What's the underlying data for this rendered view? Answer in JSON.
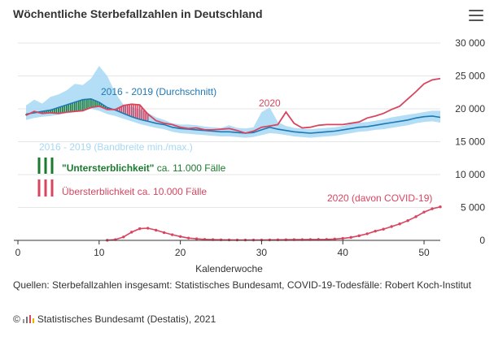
{
  "title": "Wöchentliche Sterbefallzahlen in Deutschland",
  "menu_icon": "hamburger-menu-icon",
  "source": "Quellen: Sterbefallzahlen insgesamt: Statistisches Bundesamt, COVID-19-Todesfälle: Robert Koch-Institut",
  "footer": {
    "copyright": "©",
    "logo_icon": "destatis-logo-icon",
    "text": "Statistisches Bundesamt (Destatis), 2021"
  },
  "colors": {
    "red": "#d9455f",
    "blue": "#1f78b4",
    "band": "#a6d8f5",
    "green": "#1a7a2e",
    "axis_text": "#333333",
    "grid": "#e6e6e6"
  },
  "chart_data": {
    "type": "line",
    "xlabel": "Kalenderwoche",
    "ylabel": "",
    "xlim": [
      0,
      52
    ],
    "ylim": [
      0,
      30000
    ],
    "x_ticks": [
      "0",
      "10",
      "20",
      "30",
      "40",
      "50"
    ],
    "y_ticks": [
      "0",
      "5 000",
      "10 000",
      "15 000",
      "20 000",
      "25 000",
      "30 000"
    ],
    "grid": true,
    "weeks": [
      1,
      2,
      3,
      4,
      5,
      6,
      7,
      8,
      9,
      10,
      11,
      12,
      13,
      14,
      15,
      16,
      17,
      18,
      19,
      20,
      21,
      22,
      23,
      24,
      25,
      26,
      27,
      28,
      29,
      30,
      31,
      32,
      33,
      34,
      35,
      36,
      37,
      38,
      39,
      40,
      41,
      42,
      43,
      44,
      45,
      46,
      47,
      48,
      49,
      50,
      51,
      52
    ],
    "series": [
      {
        "name": "2016 - 2019 (Durchschnitt)",
        "color": "#1f78b4",
        "values": [
          19200,
          19400,
          19600,
          19800,
          20200,
          20600,
          21000,
          21400,
          21500,
          21000,
          20200,
          19800,
          19300,
          18800,
          18400,
          18100,
          17800,
          17600,
          17200,
          17000,
          16900,
          16800,
          16700,
          16600,
          16500,
          16500,
          16400,
          16300,
          16400,
          16800,
          17200,
          16900,
          16700,
          16500,
          16400,
          16300,
          16400,
          16500,
          16600,
          16800,
          17000,
          17200,
          17300,
          17500,
          17700,
          17900,
          18100,
          18300,
          18600,
          18800,
          18900,
          18700
        ]
      },
      {
        "name": "2020",
        "color": "#d9455f",
        "values": [
          19000,
          19600,
          19300,
          19400,
          19300,
          19500,
          19600,
          19700,
          20200,
          20400,
          19900,
          19900,
          20500,
          20700,
          20600,
          19200,
          18200,
          17800,
          17600,
          17200,
          17000,
          17100,
          16800,
          16800,
          16900,
          17000,
          16700,
          16300,
          16600,
          17200,
          17400,
          17600,
          19500,
          17800,
          17100,
          17200,
          17500,
          17600,
          17600,
          17600,
          17800,
          18000,
          18600,
          18900,
          19300,
          19900,
          20400,
          21500,
          22600,
          23800,
          24400,
          24600
        ]
      },
      {
        "name": "2020 (davon COVID-19)",
        "color": "#d9455f",
        "values": [
          null,
          null,
          null,
          null,
          null,
          null,
          null,
          null,
          null,
          null,
          20,
          120,
          520,
          1250,
          1780,
          1850,
          1550,
          1180,
          860,
          580,
          350,
          230,
          150,
          110,
          90,
          70,
          60,
          55,
          55,
          60,
          70,
          90,
          100,
          110,
          120,
          130,
          140,
          150,
          200,
          300,
          450,
          700,
          1000,
          1400,
          1700,
          2100,
          2500,
          3000,
          3600,
          4300,
          4800,
          5100
        ]
      }
    ],
    "band": {
      "name": "2016 - 2019 (Bandbreite min./max.)",
      "color": "#a6d8f5",
      "min": [
        18300,
        18600,
        18800,
        18900,
        19100,
        19300,
        19500,
        19800,
        20000,
        19700,
        19200,
        18900,
        18500,
        18100,
        17700,
        17400,
        17100,
        16900,
        16500,
        16300,
        16200,
        16100,
        16000,
        15900,
        15800,
        15800,
        15700,
        15600,
        15700,
        16000,
        16300,
        16200,
        16000,
        15800,
        15700,
        15600,
        15700,
        15800,
        15900,
        16100,
        16300,
        16500,
        16600,
        16800,
        16900,
        17100,
        17300,
        17500,
        17800,
        18000,
        18100,
        17900
      ],
      "max": [
        20500,
        21400,
        20800,
        21800,
        22200,
        22800,
        23800,
        23600,
        24600,
        26500,
        25000,
        22400,
        20600,
        20300,
        19900,
        19400,
        18700,
        18300,
        17800,
        17600,
        17600,
        17500,
        17300,
        17200,
        17100,
        17500,
        17100,
        17000,
        17200,
        19500,
        20200,
        18000,
        17400,
        17100,
        17000,
        16900,
        17000,
        17100,
        17200,
        17400,
        17700,
        17900,
        18000,
        18200,
        18400,
        18700,
        18900,
        19100,
        19300,
        19500,
        19700,
        19700
      ]
    },
    "annotations": {
      "avg_label": "2016 - 2019 (Durchschnitt)",
      "y2020_label": "2020",
      "band_label": "2016 - 2019 (Bandbreite min./max.)",
      "covid_label": "2020 (davon COVID-19)",
      "under_label_bold": "\"Untersterblichkeit\"",
      "under_label_rest": " ca. 11.000 Fälle",
      "over_label": "Übersterblichkeit ca. 10.000 Fälle"
    }
  }
}
